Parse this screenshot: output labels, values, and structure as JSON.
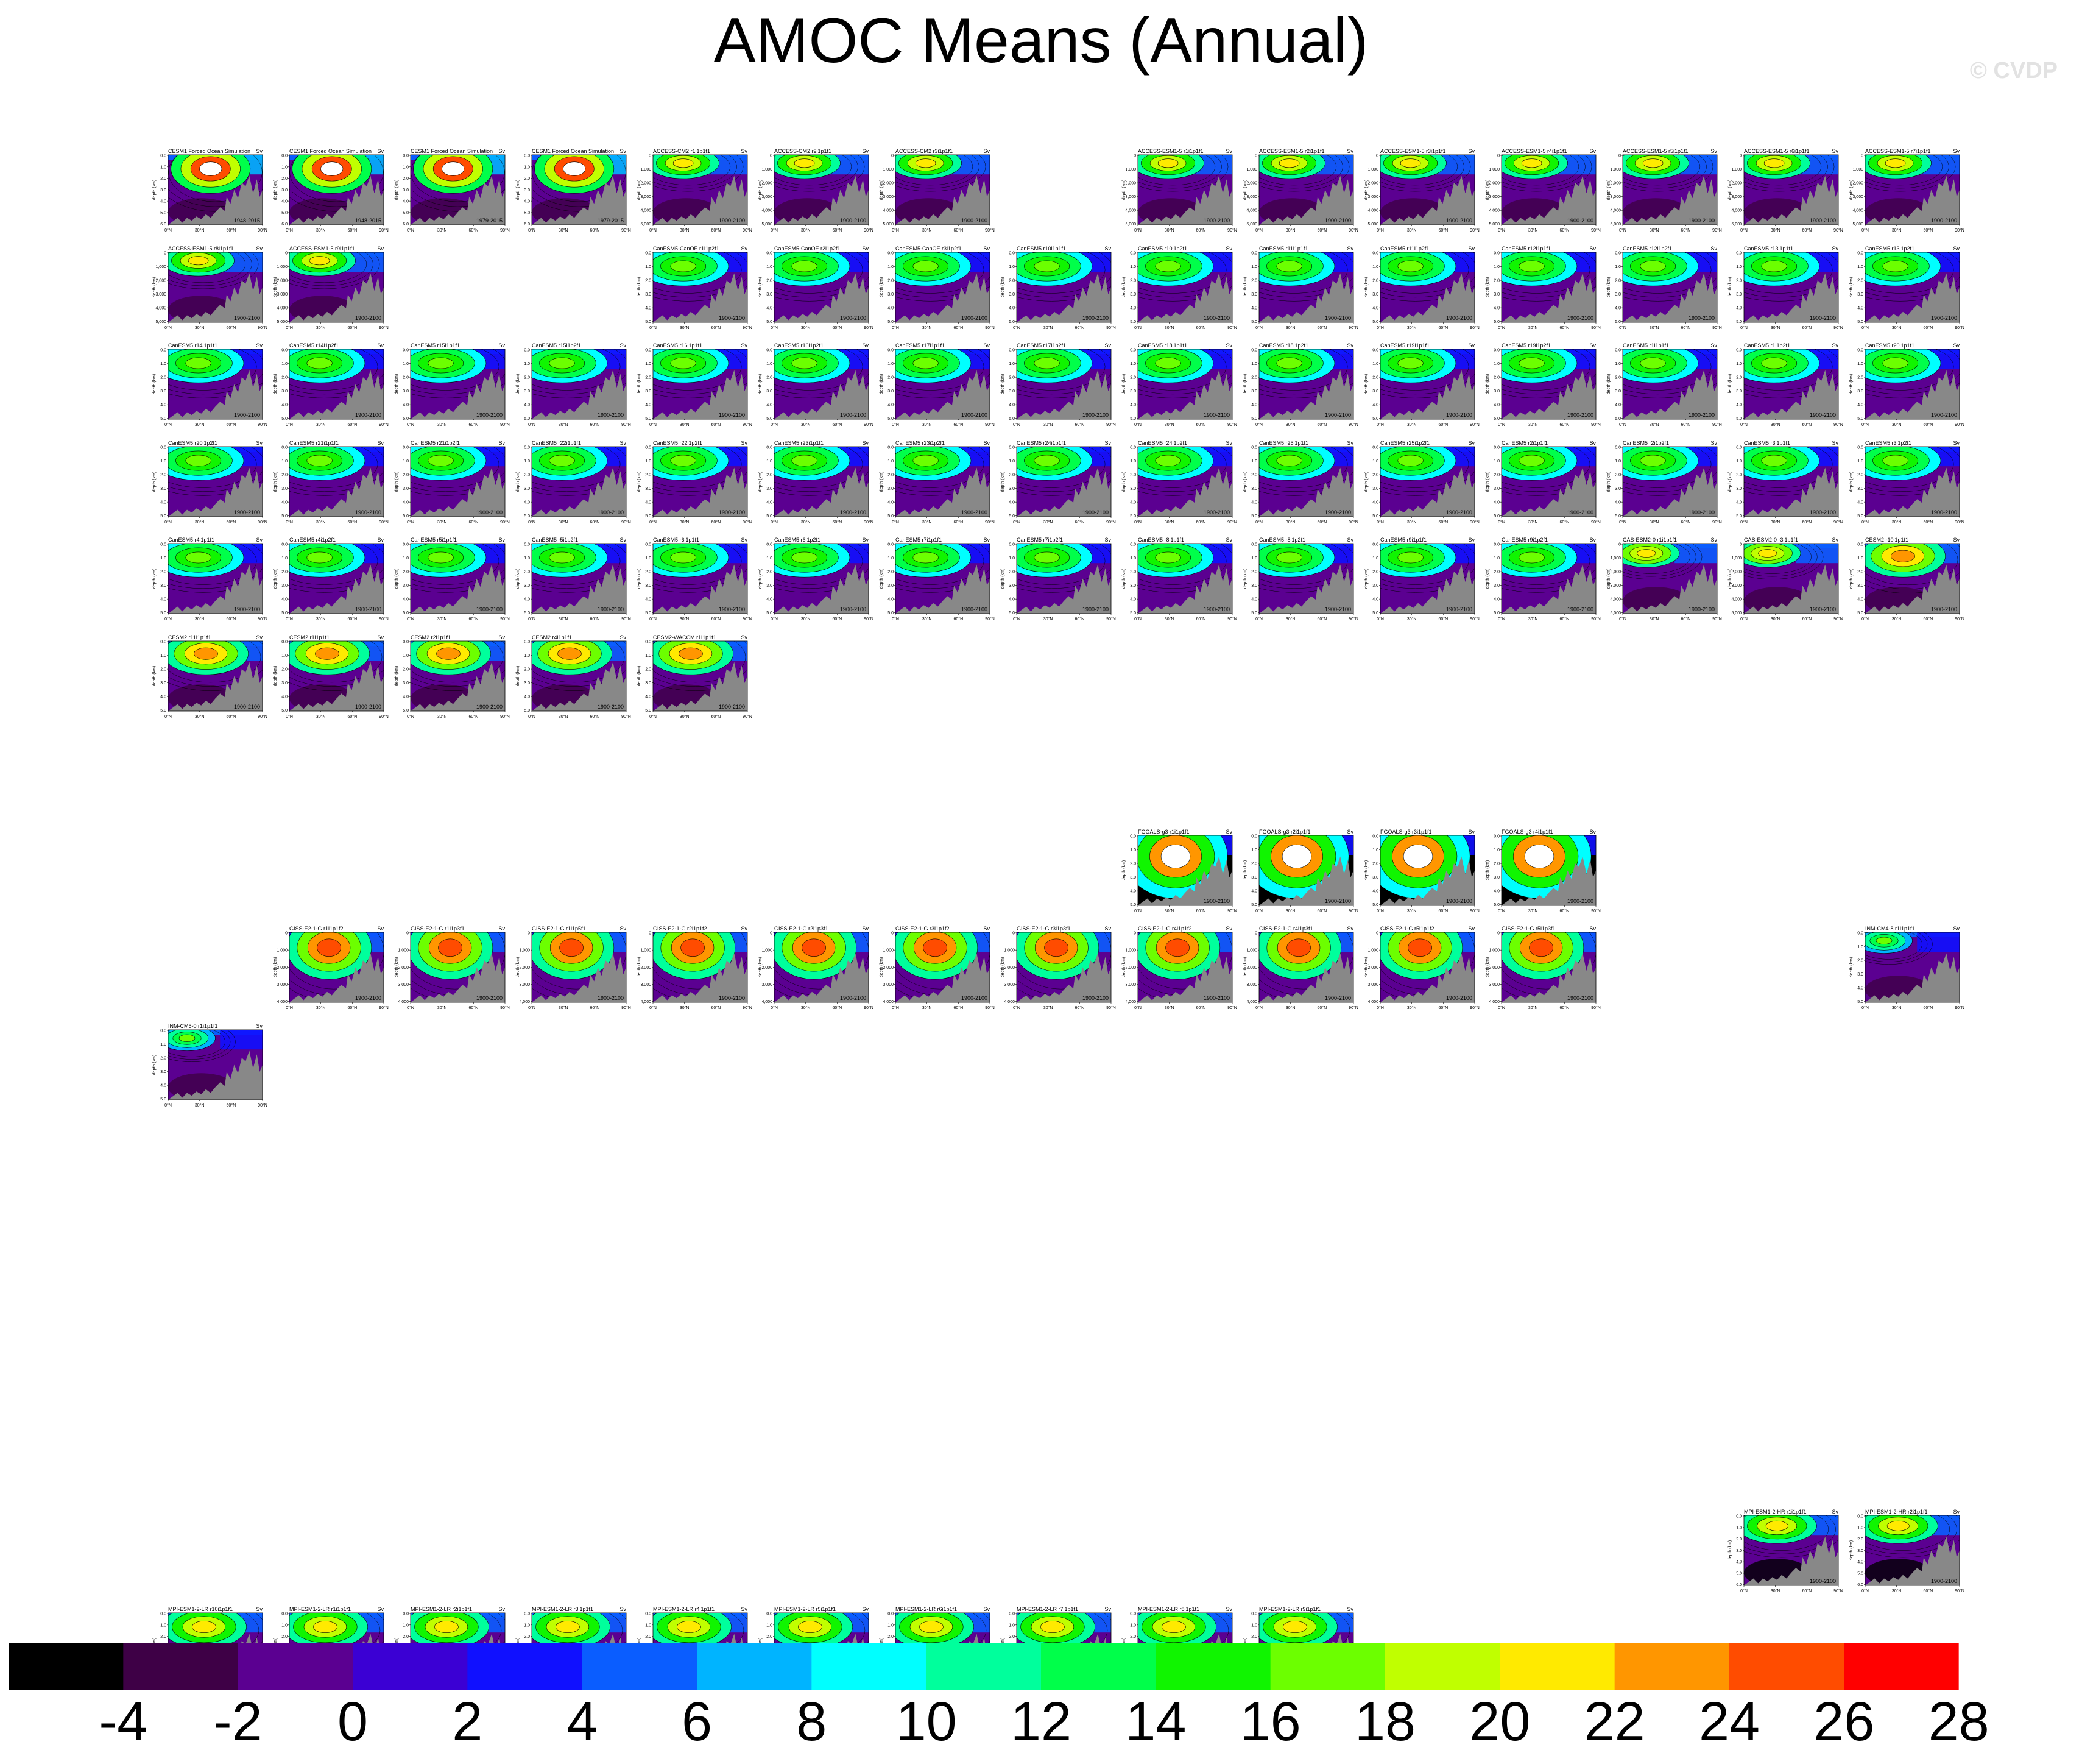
{
  "title": "AMOC Means (Annual)",
  "watermark": "© CVDP",
  "chart_data": {
    "type": "heatmap",
    "title": "AMOC Means (Annual)",
    "units": "Sv",
    "ylabel": "depth (km)",
    "xticks": [
      "0°N",
      "30°N",
      "60°N",
      "90°N"
    ],
    "colorbar": {
      "labels": [
        "-4",
        "-2",
        "0",
        "2",
        "4",
        "6",
        "8",
        "10",
        "12",
        "14",
        "16",
        "18",
        "20",
        "22",
        "24",
        "26",
        "28"
      ],
      "colors": [
        "#000000",
        "#3e0046",
        "#5b0091",
        "#3b00d4",
        "#1010ff",
        "#0a5dff",
        "#00b4ff",
        "#00ffff",
        "#00ff9c",
        "#00ff4a",
        "#10f500",
        "#6cff00",
        "#c0ff00",
        "#ffea00",
        "#ff9600",
        "#ff4c00",
        "#ff0000",
        "#ffffff"
      ]
    },
    "panels": [
      {
        "row": 0,
        "col": 0,
        "title": "CESM1 Forced Ocean Simulation",
        "period": "1948-2015",
        "style": "cesm-forced"
      },
      {
        "row": 0,
        "col": 1,
        "title": "CESM1 Forced Ocean Simulation",
        "period": "1948-2015",
        "style": "cesm-forced"
      },
      {
        "row": 0,
        "col": 2,
        "title": "CESM1 Forced Ocean Simulation",
        "period": "1979-2015",
        "style": "cesm-forced"
      },
      {
        "row": 0,
        "col": 3,
        "title": "CESM1 Forced Ocean Simulation",
        "period": "1979-2015",
        "style": "cesm-forced"
      },
      {
        "row": 0,
        "col": 4,
        "title": "ACCESS-CM2 r1i1p1f1",
        "period": "1900-2100",
        "style": "access"
      },
      {
        "row": 0,
        "col": 5,
        "title": "ACCESS-CM2 r2i1p1f1",
        "period": "1900-2100",
        "style": "access"
      },
      {
        "row": 0,
        "col": 6,
        "title": "ACCESS-CM2 r3i1p1f1",
        "period": "1900-2100",
        "style": "access"
      },
      {
        "row": 0,
        "col": 8,
        "title": "ACCESS-ESM1-5 r1i1p1f1",
        "period": "1900-2100",
        "style": "access"
      },
      {
        "row": 0,
        "col": 9,
        "title": "ACCESS-ESM1-5 r2i1p1f1",
        "period": "1900-2100",
        "style": "access"
      },
      {
        "row": 0,
        "col": 10,
        "title": "ACCESS-ESM1-5 r3i1p1f1",
        "period": "1900-2100",
        "style": "access"
      },
      {
        "row": 0,
        "col": 11,
        "title": "ACCESS-ESM1-5 r4i1p1f1",
        "period": "1900-2100",
        "style": "access"
      },
      {
        "row": 0,
        "col": 12,
        "title": "ACCESS-ESM1-5 r5i1p1f1",
        "period": "1900-2100",
        "style": "access"
      },
      {
        "row": 0,
        "col": 13,
        "title": "ACCESS-ESM1-5 r6i1p1f1",
        "period": "1900-2100",
        "style": "access"
      },
      {
        "row": 0,
        "col": 14,
        "title": "ACCESS-ESM1-5 r7i1p1f1",
        "period": "1900-2100",
        "style": "access"
      },
      {
        "row": 1,
        "col": 0,
        "title": "ACCESS-ESM1-5 r8i1p1f1",
        "period": "1900-2100",
        "style": "access"
      },
      {
        "row": 1,
        "col": 1,
        "title": "ACCESS-ESM1-5 r9i1p1f1",
        "period": "1900-2100",
        "style": "access"
      },
      {
        "row": 1,
        "col": 4,
        "title": "CanESM5-CanOE r1i1p2f1",
        "period": "1900-2100",
        "style": "canesm"
      },
      {
        "row": 1,
        "col": 5,
        "title": "CanESM5-CanOE r2i1p2f1",
        "period": "1900-2100",
        "style": "canesm"
      },
      {
        "row": 1,
        "col": 6,
        "title": "CanESM5-CanOE r3i1p2f1",
        "period": "1900-2100",
        "style": "canesm"
      },
      {
        "row": 1,
        "col": 7,
        "title": "CanESM5 r10i1p1f1",
        "period": "1900-2100",
        "style": "canesm"
      },
      {
        "row": 1,
        "col": 8,
        "title": "CanESM5 r10i1p2f1",
        "period": "1900-2100",
        "style": "canesm"
      },
      {
        "row": 1,
        "col": 9,
        "title": "CanESM5 r11i1p1f1",
        "period": "1900-2100",
        "style": "canesm"
      },
      {
        "row": 1,
        "col": 10,
        "title": "CanESM5 r11i1p2f1",
        "period": "1900-2100",
        "style": "canesm"
      },
      {
        "row": 1,
        "col": 11,
        "title": "CanESM5 r12i1p1f1",
        "period": "1900-2100",
        "style": "canesm"
      },
      {
        "row": 1,
        "col": 12,
        "title": "CanESM5 r12i1p2f1",
        "period": "1900-2100",
        "style": "canesm"
      },
      {
        "row": 1,
        "col": 13,
        "title": "CanESM5 r13i1p1f1",
        "period": "1900-2100",
        "style": "canesm"
      },
      {
        "row": 1,
        "col": 14,
        "title": "CanESM5 r13i1p2f1",
        "period": "1900-2100",
        "style": "canesm"
      },
      {
        "row": 2,
        "col": 0,
        "title": "CanESM5 r14i1p1f1",
        "period": "1900-2100",
        "style": "canesm"
      },
      {
        "row": 2,
        "col": 1,
        "title": "CanESM5 r14i1p2f1",
        "period": "1900-2100",
        "style": "canesm"
      },
      {
        "row": 2,
        "col": 2,
        "title": "CanESM5 r15i1p1f1",
        "period": "1900-2100",
        "style": "canesm"
      },
      {
        "row": 2,
        "col": 3,
        "title": "CanESM5 r15i1p2f1",
        "period": "1900-2100",
        "style": "canesm"
      },
      {
        "row": 2,
        "col": 4,
        "title": "CanESM5 r16i1p1f1",
        "period": "1900-2100",
        "style": "canesm"
      },
      {
        "row": 2,
        "col": 5,
        "title": "CanESM5 r16i1p2f1",
        "period": "1900-2100",
        "style": "canesm"
      },
      {
        "row": 2,
        "col": 6,
        "title": "CanESM5 r17i1p1f1",
        "period": "1900-2100",
        "style": "canesm"
      },
      {
        "row": 2,
        "col": 7,
        "title": "CanESM5 r17i1p2f1",
        "period": "1900-2100",
        "style": "canesm"
      },
      {
        "row": 2,
        "col": 8,
        "title": "CanESM5 r18i1p1f1",
        "period": "1900-2100",
        "style": "canesm"
      },
      {
        "row": 2,
        "col": 9,
        "title": "CanESM5 r18i1p2f1",
        "period": "1900-2100",
        "style": "canesm"
      },
      {
        "row": 2,
        "col": 10,
        "title": "CanESM5 r19i1p1f1",
        "period": "1900-2100",
        "style": "canesm"
      },
      {
        "row": 2,
        "col": 11,
        "title": "CanESM5 r19i1p2f1",
        "period": "1900-2100",
        "style": "canesm"
      },
      {
        "row": 2,
        "col": 12,
        "title": "CanESM5 r1i1p1f1",
        "period": "1900-2100",
        "style": "canesm"
      },
      {
        "row": 2,
        "col": 13,
        "title": "CanESM5 r1i1p2f1",
        "period": "1900-2100",
        "style": "canesm"
      },
      {
        "row": 2,
        "col": 14,
        "title": "CanESM5 r20i1p1f1",
        "period": "1900-2100",
        "style": "canesm"
      },
      {
        "row": 3,
        "col": 0,
        "title": "CanESM5 r20i1p2f1",
        "period": "1900-2100",
        "style": "canesm"
      },
      {
        "row": 3,
        "col": 1,
        "title": "CanESM5 r21i1p1f1",
        "period": "1900-2100",
        "style": "canesm"
      },
      {
        "row": 3,
        "col": 2,
        "title": "CanESM5 r21i1p2f1",
        "period": "1900-2100",
        "style": "canesm"
      },
      {
        "row": 3,
        "col": 3,
        "title": "CanESM5 r22i1p1f1",
        "period": "1900-2100",
        "style": "canesm"
      },
      {
        "row": 3,
        "col": 4,
        "title": "CanESM5 r22i1p2f1",
        "period": "1900-2100",
        "style": "canesm"
      },
      {
        "row": 3,
        "col": 5,
        "title": "CanESM5 r23i1p1f1",
        "period": "1900-2100",
        "style": "canesm"
      },
      {
        "row": 3,
        "col": 6,
        "title": "CanESM5 r23i1p2f1",
        "period": "1900-2100",
        "style": "canesm"
      },
      {
        "row": 3,
        "col": 7,
        "title": "CanESM5 r24i1p1f1",
        "period": "1900-2100",
        "style": "canesm"
      },
      {
        "row": 3,
        "col": 8,
        "title": "CanESM5 r24i1p2f1",
        "period": "1900-2100",
        "style": "canesm"
      },
      {
        "row": 3,
        "col": 9,
        "title": "CanESM5 r25i1p1f1",
        "period": "1900-2100",
        "style": "canesm"
      },
      {
        "row": 3,
        "col": 10,
        "title": "CanESM5 r25i1p2f1",
        "period": "1900-2100",
        "style": "canesm"
      },
      {
        "row": 3,
        "col": 11,
        "title": "CanESM5 r2i1p1f1",
        "period": "1900-2100",
        "style": "canesm"
      },
      {
        "row": 3,
        "col": 12,
        "title": "CanESM5 r2i1p2f1",
        "period": "1900-2100",
        "style": "canesm"
      },
      {
        "row": 3,
        "col": 13,
        "title": "CanESM5 r3i1p1f1",
        "period": "1900-2100",
        "style": "canesm"
      },
      {
        "row": 3,
        "col": 14,
        "title": "CanESM5 r3i1p2f1",
        "period": "1900-2100",
        "style": "canesm"
      },
      {
        "row": 4,
        "col": 0,
        "title": "CanESM5 r4i1p1f1",
        "period": "1900-2100",
        "style": "canesm"
      },
      {
        "row": 4,
        "col": 1,
        "title": "CanESM5 r4i1p2f1",
        "period": "1900-2100",
        "style": "canesm"
      },
      {
        "row": 4,
        "col": 2,
        "title": "CanESM5 r5i1p1f1",
        "period": "1900-2100",
        "style": "canesm"
      },
      {
        "row": 4,
        "col": 3,
        "title": "CanESM5 r5i1p2f1",
        "period": "1900-2100",
        "style": "canesm"
      },
      {
        "row": 4,
        "col": 4,
        "title": "CanESM5 r6i1p1f1",
        "period": "1900-2100",
        "style": "canesm"
      },
      {
        "row": 4,
        "col": 5,
        "title": "CanESM5 r6i1p2f1",
        "period": "1900-2100",
        "style": "canesm"
      },
      {
        "row": 4,
        "col": 6,
        "title": "CanESM5 r7i1p1f1",
        "period": "1900-2100",
        "style": "canesm"
      },
      {
        "row": 4,
        "col": 7,
        "title": "CanESM5 r7i1p2f1",
        "period": "1900-2100",
        "style": "canesm"
      },
      {
        "row": 4,
        "col": 8,
        "title": "CanESM5 r8i1p1f1",
        "period": "1900-2100",
        "style": "canesm"
      },
      {
        "row": 4,
        "col": 9,
        "title": "CanESM5 r8i1p2f1",
        "period": "1900-2100",
        "style": "canesm"
      },
      {
        "row": 4,
        "col": 10,
        "title": "CanESM5 r9i1p1f1",
        "period": "1900-2100",
        "style": "canesm"
      },
      {
        "row": 4,
        "col": 11,
        "title": "CanESM5 r9i1p2f1",
        "period": "1900-2100",
        "style": "canesm"
      },
      {
        "row": 4,
        "col": 12,
        "title": "CAS-ESM2-0 r1i1p1f1",
        "period": "1900-2100",
        "style": "cas"
      },
      {
        "row": 4,
        "col": 13,
        "title": "CAS-ESM2-0 r3i1p1f1",
        "period": "1900-2100",
        "style": "cas"
      },
      {
        "row": 4,
        "col": 14,
        "title": "CESM2 r10i1p1f1",
        "period": "1900-2100",
        "style": "cesm2"
      },
      {
        "row": 5,
        "col": 0,
        "title": "CESM2 r11i1p1f1",
        "period": "1900-2100",
        "style": "cesm2"
      },
      {
        "row": 5,
        "col": 1,
        "title": "CESM2 r1i1p1f1",
        "period": "1900-2100",
        "style": "cesm2"
      },
      {
        "row": 5,
        "col": 2,
        "title": "CESM2 r2i1p1f1",
        "period": "1900-2100",
        "style": "cesm2"
      },
      {
        "row": 5,
        "col": 3,
        "title": "CESM2 r4i1p1f1",
        "period": "1900-2100",
        "style": "cesm2"
      },
      {
        "row": 5,
        "col": 4,
        "title": "CESM2-WACCM r1i1p1f1",
        "period": "1900-2100",
        "style": "cesm2"
      },
      {
        "row": 7,
        "col": 8,
        "title": "FGOALS-g3 r1i1p1f1",
        "period": "1900-2100",
        "style": "fgoals"
      },
      {
        "row": 7,
        "col": 9,
        "title": "FGOALS-g3 r2i1p1f1",
        "period": "1900-2100",
        "style": "fgoals"
      },
      {
        "row": 7,
        "col": 10,
        "title": "FGOALS-g3 r3i1p1f1",
        "period": "1900-2100",
        "style": "fgoals"
      },
      {
        "row": 7,
        "col": 11,
        "title": "FGOALS-g3 r4i1p1f1",
        "period": "1900-2100",
        "style": "fgoals"
      },
      {
        "row": 8,
        "col": 1,
        "title": "GISS-E2-1-G r1i1p1f2",
        "period": "1900-2100",
        "style": "giss"
      },
      {
        "row": 8,
        "col": 2,
        "title": "GISS-E2-1-G r1i1p3f1",
        "period": "1900-2100",
        "style": "giss"
      },
      {
        "row": 8,
        "col": 3,
        "title": "GISS-E2-1-G r1i1p5f1",
        "period": "1900-2100",
        "style": "giss"
      },
      {
        "row": 8,
        "col": 4,
        "title": "GISS-E2-1-G r2i1p1f2",
        "period": "1900-2100",
        "style": "giss"
      },
      {
        "row": 8,
        "col": 5,
        "title": "GISS-E2-1-G r2i1p3f1",
        "period": "1900-2100",
        "style": "giss"
      },
      {
        "row": 8,
        "col": 6,
        "title": "GISS-E2-1-G r3i1p1f2",
        "period": "1900-2100",
        "style": "giss"
      },
      {
        "row": 8,
        "col": 7,
        "title": "GISS-E2-1-G r3i1p3f1",
        "period": "1900-2100",
        "style": "giss"
      },
      {
        "row": 8,
        "col": 8,
        "title": "GISS-E2-1-G r4i1p1f2",
        "period": "1900-2100",
        "style": "giss"
      },
      {
        "row": 8,
        "col": 9,
        "title": "GISS-E2-1-G r4i1p3f1",
        "period": "1900-2100",
        "style": "giss"
      },
      {
        "row": 8,
        "col": 10,
        "title": "GISS-E2-1-G r5i1p1f2",
        "period": "1900-2100",
        "style": "giss"
      },
      {
        "row": 8,
        "col": 11,
        "title": "GISS-E2-1-G r5i1p3f1",
        "period": "1900-2100",
        "style": "giss"
      },
      {
        "row": 8,
        "col": 14,
        "title": "INM-CM4-8 r1i1p1f1",
        "period": "",
        "style": "inm"
      },
      {
        "row": 9,
        "col": 0,
        "title": "INM-CM5-0 r1i1p1f1",
        "period": "",
        "style": "inm"
      },
      {
        "row": 14,
        "col": 13,
        "title": "MPI-ESM1-2-HR r1i1p1f1",
        "period": "1900-2100",
        "style": "mpihr"
      },
      {
        "row": 14,
        "col": 14,
        "title": "MPI-ESM1-2-HR r2i1p1f1",
        "period": "1900-2100",
        "style": "mpihr"
      },
      {
        "row": 15,
        "col": 0,
        "title": "MPI-ESM1-2-LR r10i1p1f1",
        "period": "1900-2100",
        "style": "mpilr"
      },
      {
        "row": 15,
        "col": 1,
        "title": "MPI-ESM1-2-LR r1i1p1f1",
        "period": "1900-2100",
        "style": "mpilr"
      },
      {
        "row": 15,
        "col": 2,
        "title": "MPI-ESM1-2-LR r2i1p1f1",
        "period": "1900-2100",
        "style": "mpilr"
      },
      {
        "row": 15,
        "col": 3,
        "title": "MPI-ESM1-2-LR r3i1p1f1",
        "period": "1900-2100",
        "style": "mpilr"
      },
      {
        "row": 15,
        "col": 4,
        "title": "MPI-ESM1-2-LR r4i1p1f1",
        "period": "1900-2100",
        "style": "mpilr"
      },
      {
        "row": 15,
        "col": 5,
        "title": "MPI-ESM1-2-LR r5i1p1f1",
        "period": "1900-2100",
        "style": "mpilr"
      },
      {
        "row": 15,
        "col": 6,
        "title": "MPI-ESM1-2-LR r6i1p1f1",
        "period": "1900-2100",
        "style": "mpilr"
      },
      {
        "row": 15,
        "col": 7,
        "title": "MPI-ESM1-2-LR r7i1p1f1",
        "period": "1900-2100",
        "style": "mpilr"
      },
      {
        "row": 15,
        "col": 8,
        "title": "MPI-ESM1-2-LR r8i1p1f1",
        "period": "1900-2100",
        "style": "mpilr"
      },
      {
        "row": 15,
        "col": 9,
        "title": "MPI-ESM1-2-LR r9i1p1f1",
        "period": "1900-2100",
        "style": "mpilr"
      }
    ]
  }
}
